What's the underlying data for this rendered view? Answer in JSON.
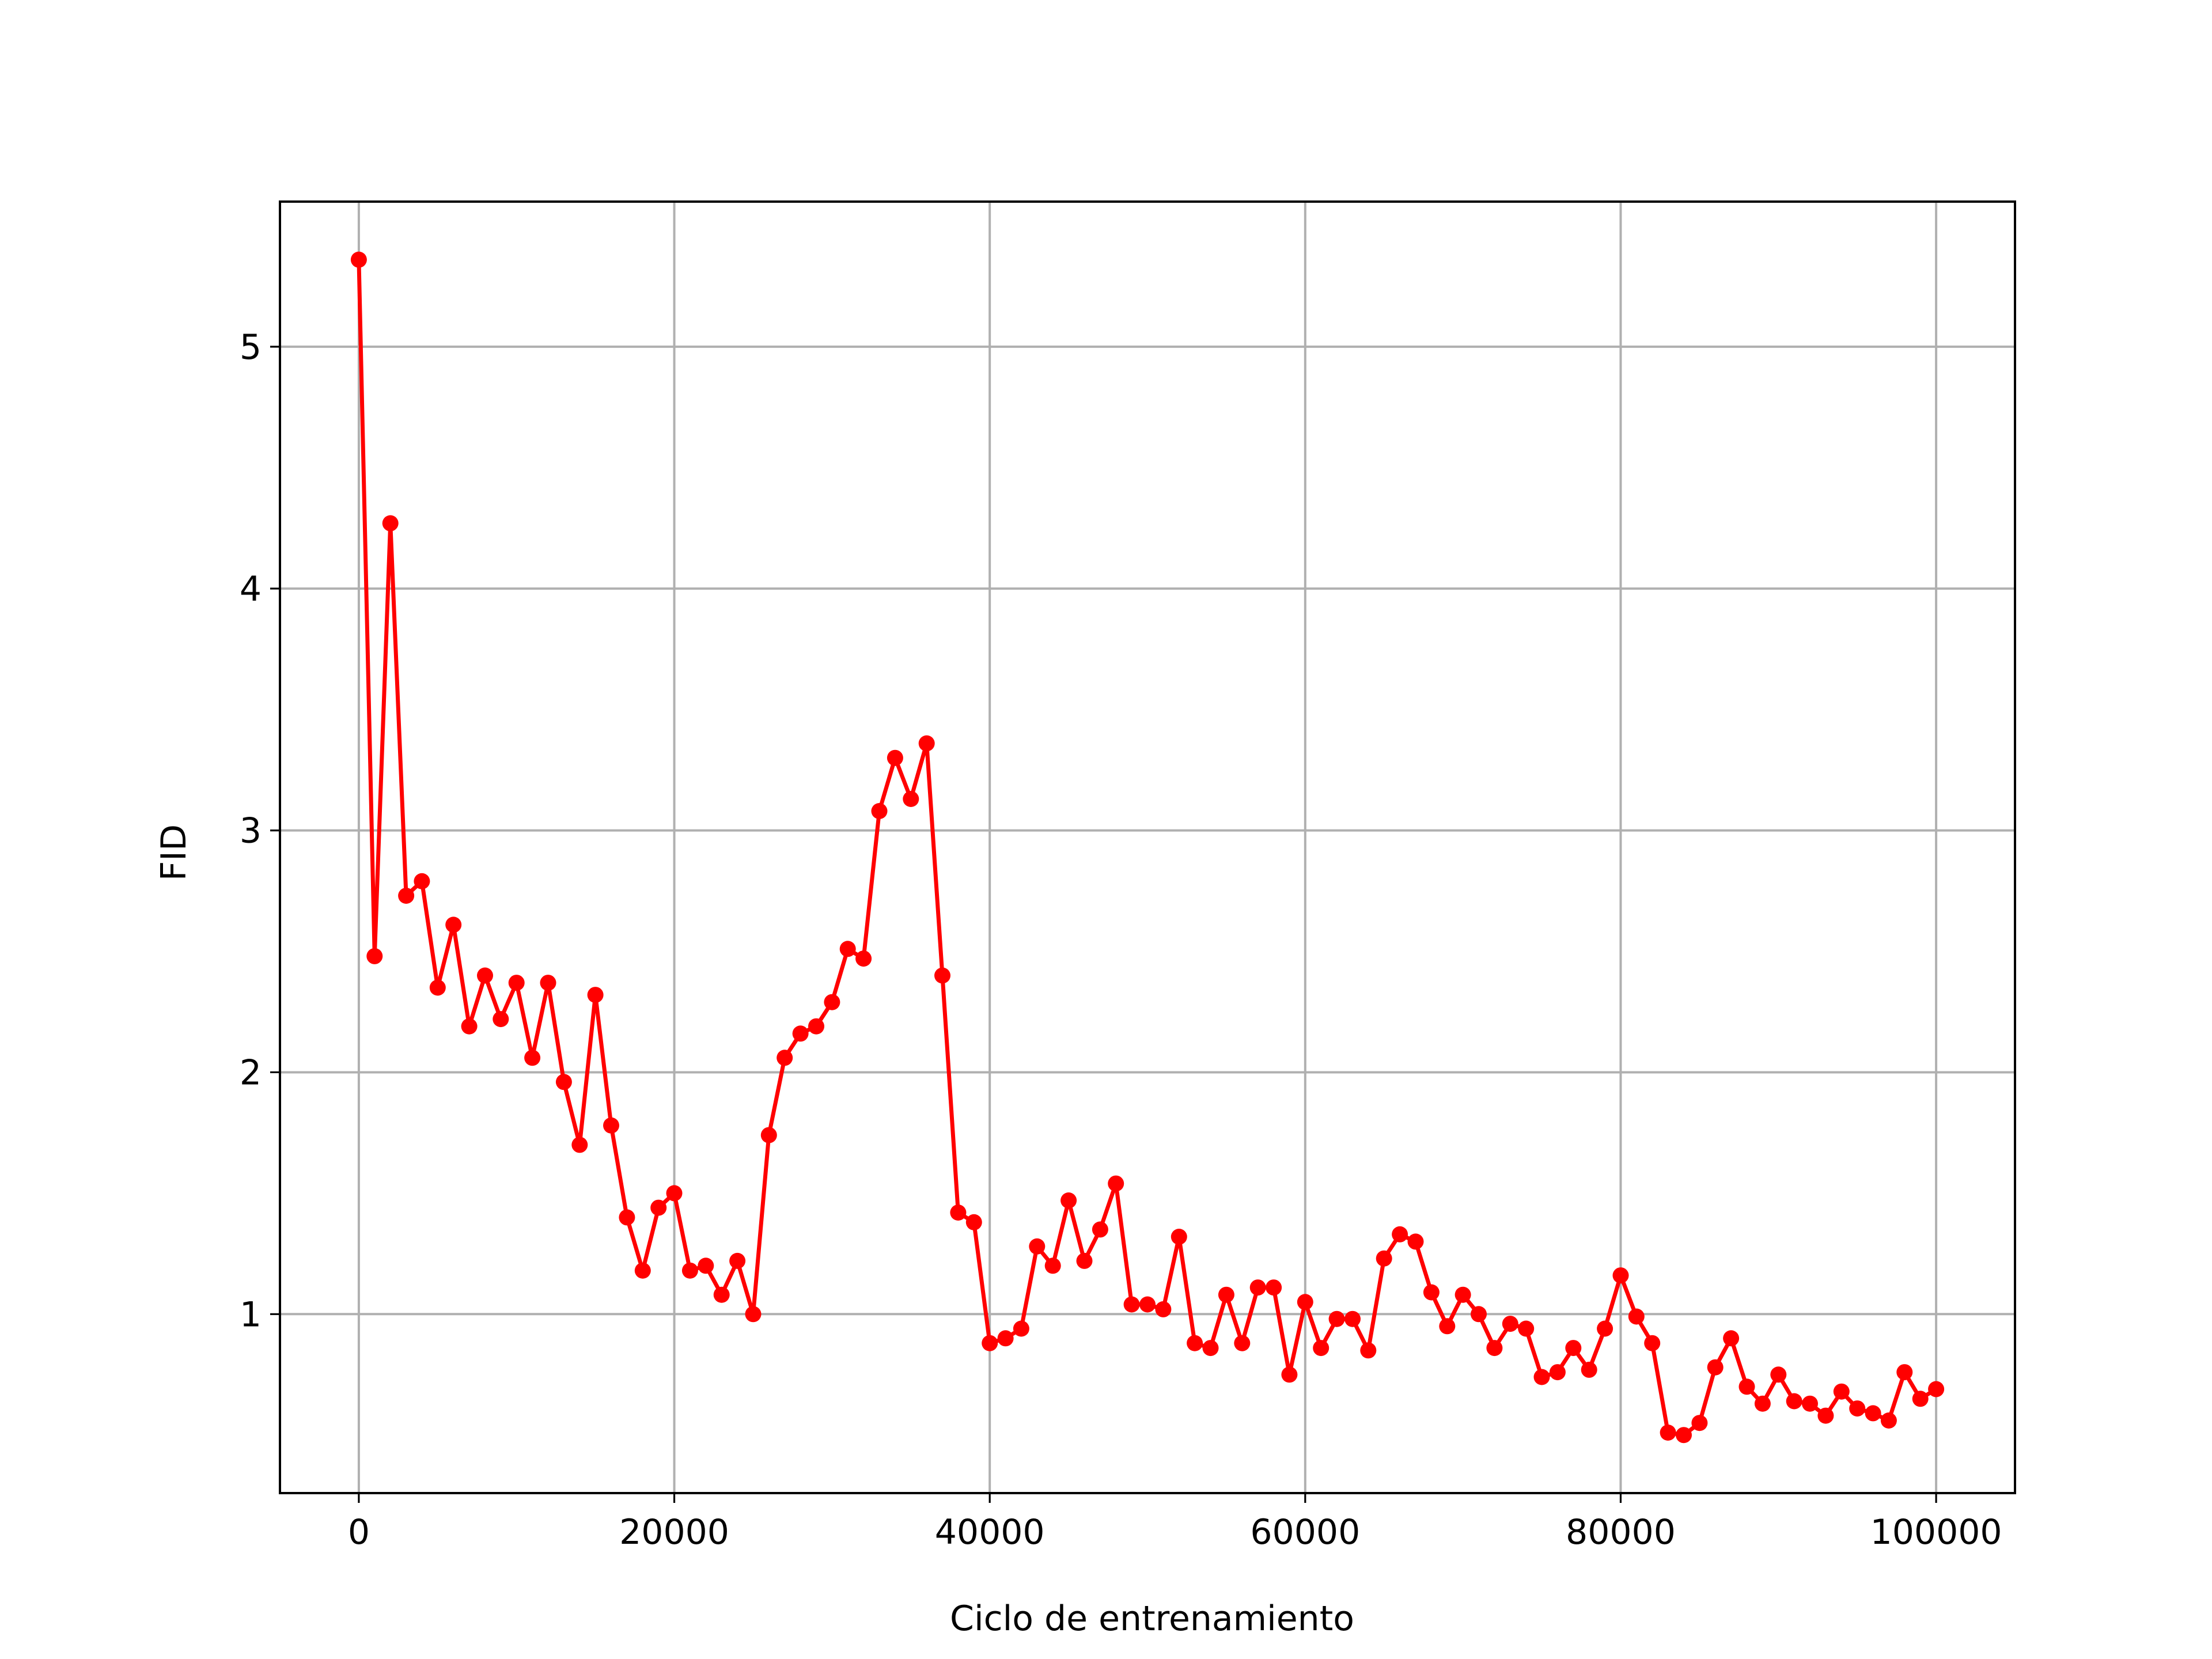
{
  "chart_data": {
    "type": "line",
    "title": "",
    "xlabel": "Ciclo de entrenamiento",
    "ylabel": "FID",
    "xlim": [
      -5000,
      105000
    ],
    "ylim": [
      0.26,
      5.6
    ],
    "xticks": [
      0,
      20000,
      40000,
      60000,
      80000,
      100000
    ],
    "xtick_labels": [
      "0",
      "20000",
      "40000",
      "60000",
      "80000",
      "100000"
    ],
    "yticks": [
      1,
      2,
      3,
      4,
      5
    ],
    "ytick_labels": [
      "1",
      "2",
      "3",
      "4",
      "5"
    ],
    "grid": true,
    "legend": "none",
    "series": [
      {
        "color": "#ff0000",
        "marker": "circle",
        "x": [
          0,
          1000,
          2000,
          3000,
          4000,
          5000,
          6000,
          7000,
          8000,
          9000,
          10000,
          11000,
          12000,
          13000,
          14000,
          15000,
          16000,
          17000,
          18000,
          19000,
          20000,
          21000,
          22000,
          23000,
          24000,
          25000,
          26000,
          27000,
          28000,
          29000,
          30000,
          31000,
          32000,
          33000,
          34000,
          35000,
          36000,
          37000,
          38000,
          39000,
          40000,
          41000,
          42000,
          43000,
          44000,
          45000,
          46000,
          47000,
          48000,
          49000,
          50000,
          51000,
          52000,
          53000,
          54000,
          55000,
          56000,
          57000,
          58000,
          59000,
          60000,
          61000,
          62000,
          63000,
          64000,
          65000,
          66000,
          67000,
          68000,
          69000,
          70000,
          71000,
          72000,
          73000,
          74000,
          75000,
          76000,
          77000,
          78000,
          79000,
          80000,
          81000,
          82000,
          83000,
          84000,
          85000,
          86000,
          87000,
          88000,
          89000,
          90000,
          91000,
          92000,
          93000,
          94000,
          95000,
          96000,
          97000,
          98000,
          99000,
          100000
        ],
        "y": [
          5.36,
          2.48,
          4.27,
          2.73,
          2.79,
          2.35,
          2.61,
          2.19,
          2.4,
          2.22,
          2.37,
          2.06,
          2.37,
          1.96,
          1.7,
          2.32,
          1.78,
          1.4,
          1.18,
          1.44,
          1.5,
          1.18,
          1.2,
          1.08,
          1.22,
          1.0,
          1.74,
          2.06,
          2.16,
          2.19,
          2.29,
          2.51,
          2.47,
          3.08,
          3.3,
          3.13,
          3.36,
          2.4,
          1.42,
          1.38,
          0.88,
          0.9,
          0.94,
          1.28,
          1.2,
          1.47,
          1.22,
          1.35,
          1.54,
          1.04,
          1.04,
          1.02,
          1.32,
          0.88,
          0.86,
          1.08,
          0.88,
          1.11,
          1.11,
          0.75,
          1.05,
          0.86,
          0.98,
          0.98,
          0.85,
          1.23,
          1.33,
          1.3,
          1.09,
          0.95,
          1.08,
          1.0,
          0.86,
          0.96,
          0.94,
          0.74,
          0.76,
          0.86,
          0.77,
          0.94,
          1.16,
          0.99,
          0.88,
          0.51,
          0.5,
          0.55,
          0.78,
          0.9,
          0.7,
          0.63,
          0.75,
          0.64,
          0.63,
          0.58,
          0.68,
          0.61,
          0.59,
          0.56,
          0.76,
          0.65,
          0.69
        ]
      }
    ]
  }
}
